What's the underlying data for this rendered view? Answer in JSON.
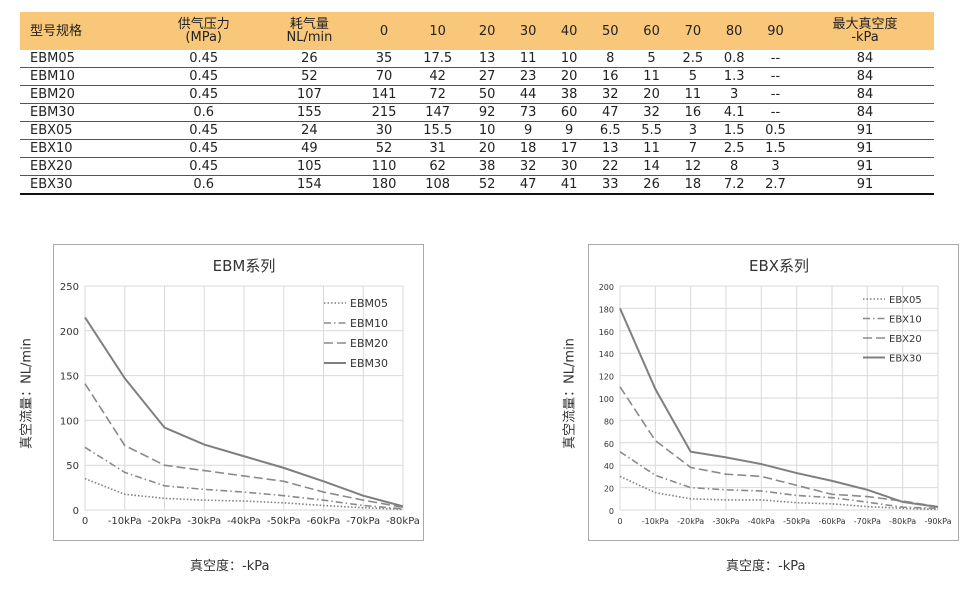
{
  "table": {
    "headers": [
      "型号规格",
      "供气压力\n(MPa)",
      "耗气量\nNL/min",
      "0",
      "10",
      "20",
      "30",
      "40",
      "50",
      "60",
      "70",
      "80",
      "90",
      "最大真空度\n-kPa"
    ],
    "rows": [
      [
        "EBM05",
        "0.45",
        "26",
        "35",
        "17.5",
        "13",
        "11",
        "10",
        "8",
        "5",
        "2.5",
        "0.8",
        "--",
        "84"
      ],
      [
        "EBM10",
        "0.45",
        "52",
        "70",
        "42",
        "27",
        "23",
        "20",
        "16",
        "11",
        "5",
        "1.3",
        "--",
        "84"
      ],
      [
        "EBM20",
        "0.45",
        "107",
        "141",
        "72",
        "50",
        "44",
        "38",
        "32",
        "20",
        "11",
        "3",
        "--",
        "84"
      ],
      [
        "EBM30",
        "0.6",
        "155",
        "215",
        "147",
        "92",
        "73",
        "60",
        "47",
        "32",
        "16",
        "4.1",
        "--",
        "84"
      ],
      [
        "EBX05",
        "0.45",
        "24",
        "30",
        "15.5",
        "10",
        "9",
        "9",
        "6.5",
        "5.5",
        "3",
        "1.5",
        "0.5",
        "91"
      ],
      [
        "EBX10",
        "0.45",
        "49",
        "52",
        "31",
        "20",
        "18",
        "17",
        "13",
        "11",
        "7",
        "2.5",
        "1.5",
        "91"
      ],
      [
        "EBX20",
        "0.45",
        "105",
        "110",
        "62",
        "38",
        "32",
        "30",
        "22",
        "14",
        "12",
        "8",
        "3",
        "91"
      ],
      [
        "EBX30",
        "0.6",
        "154",
        "180",
        "108",
        "52",
        "47",
        "41",
        "33",
        "26",
        "18",
        "7.2",
        "2.7",
        "91"
      ]
    ]
  },
  "chart_data": [
    {
      "type": "line",
      "title": "EBM系列",
      "xlabel": "真空度：-kPa",
      "ylabel": "真空流量：NL/min",
      "categories": [
        "0",
        "-10kPa",
        "-20kPa",
        "-30kPa",
        "-40kPa",
        "-50kPa",
        "-60kPa",
        "-70kPa",
        "-80kPa"
      ],
      "ylim": [
        0,
        250
      ],
      "yticks": [
        0,
        50,
        100,
        150,
        200,
        250
      ],
      "grid": true,
      "legend": "top-right",
      "series": [
        {
          "name": "EBM05",
          "values": [
            35,
            17.5,
            13,
            11,
            10,
            8,
            5,
            2.5,
            0.8
          ],
          "style": "dotted",
          "color": "#7f7f7f"
        },
        {
          "name": "EBM10",
          "values": [
            70,
            42,
            27,
            23,
            20,
            16,
            11,
            5,
            1.3
          ],
          "style": "dashdot",
          "color": "#8a8a8a"
        },
        {
          "name": "EBM20",
          "values": [
            141,
            72,
            50,
            44,
            38,
            32,
            20,
            11,
            3
          ],
          "style": "dashed",
          "color": "#8a8a8a"
        },
        {
          "name": "EBM30",
          "values": [
            215,
            147,
            92,
            73,
            60,
            47,
            32,
            16,
            4.1
          ],
          "style": "solid",
          "color": "#7f7f7f"
        }
      ]
    },
    {
      "type": "line",
      "title": "EBX系列",
      "xlabel": "真空度：-kPa",
      "ylabel": "真空流量：NL/min",
      "categories": [
        "0",
        "-10kPa",
        "-20kPa",
        "-30kPa",
        "-40kPa",
        "-50kPa",
        "-60kPa",
        "-70kPa",
        "-80kPa",
        "-90kPa"
      ],
      "ylim": [
        0,
        200
      ],
      "yticks": [
        0,
        20,
        40,
        60,
        80,
        100,
        120,
        140,
        160,
        180,
        200
      ],
      "grid": true,
      "legend": "top-right",
      "series": [
        {
          "name": "EBX05",
          "values": [
            30,
            15.5,
            10,
            9,
            9,
            6.5,
            5.5,
            3,
            1.5,
            0.5
          ],
          "style": "dotted",
          "color": "#7f7f7f"
        },
        {
          "name": "EBX10",
          "values": [
            52,
            31,
            20,
            18,
            17,
            13,
            11,
            7,
            2.5,
            1.5
          ],
          "style": "dashdot",
          "color": "#8a8a8a"
        },
        {
          "name": "EBX20",
          "values": [
            110,
            62,
            38,
            32,
            30,
            22,
            14,
            12,
            8,
            3
          ],
          "style": "dashed",
          "color": "#8a8a8a"
        },
        {
          "name": "EBX30",
          "values": [
            180,
            108,
            52,
            47,
            41,
            33,
            26,
            18,
            7.2,
            2.7
          ],
          "style": "solid",
          "color": "#7f7f7f"
        }
      ]
    }
  ]
}
